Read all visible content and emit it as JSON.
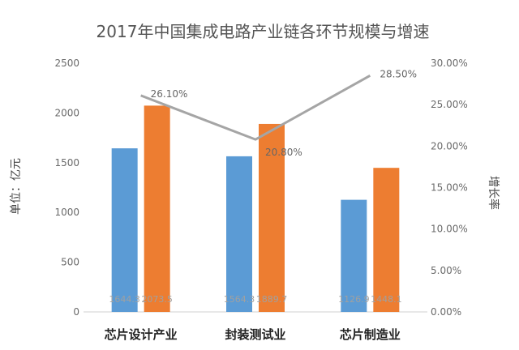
{
  "chart_data": {
    "type": "bar",
    "title": "2017年中国集成电路产业链各环节规模与增速",
    "categories": [
      "芯片设计产业",
      "封装测试业",
      "芯片制造业"
    ],
    "series": [
      {
        "values": [
          1644.3,
          1564.3,
          1126.9
        ],
        "color": "#5b9bd5"
      },
      {
        "values": [
          2073.5,
          1889.7,
          1448.1
        ],
        "color": "#ed7d31"
      }
    ],
    "line_series": {
      "values": [
        26.1,
        20.8,
        28.5
      ],
      "labels": [
        "26.10%",
        "20.80%",
        "28.50%"
      ],
      "color": "#a5a5a5"
    },
    "ylabel": "单位：亿元",
    "y2label": "增长率",
    "ylim": [
      0,
      2500
    ],
    "y2lim": [
      0,
      30
    ],
    "y_ticks": [
      "0",
      "500",
      "1000",
      "1500",
      "2000",
      "2500"
    ],
    "y2_ticks": [
      "0.00%",
      "5.00%",
      "10.00%",
      "15.00%",
      "20.00%",
      "25.00%",
      "30.00%"
    ],
    "bar_value_labels": [
      [
        "1644.3",
        "2073.5"
      ],
      [
        "1564.3",
        "1889.7"
      ],
      [
        "1126.9",
        "1448.1"
      ]
    ],
    "grid": false,
    "legend": "none"
  }
}
